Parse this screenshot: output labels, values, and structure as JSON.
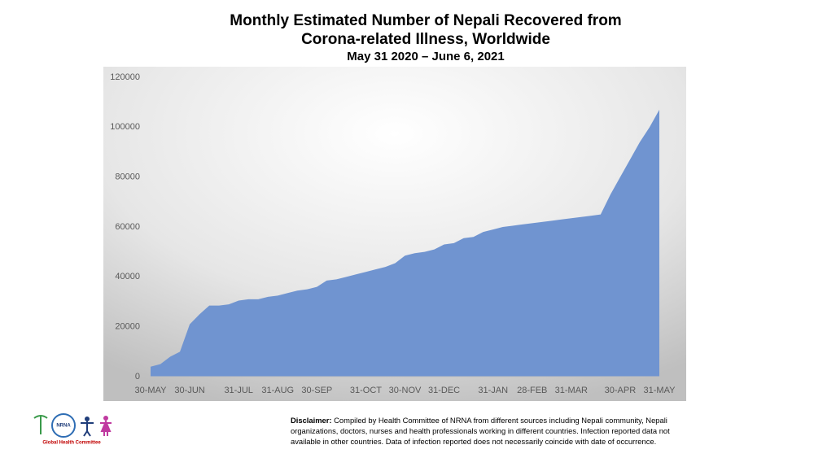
{
  "chart_data": {
    "type": "area",
    "title": "Monthly Estimated Number of Nepali Recovered from Corona-related Illness, Worldwide",
    "subtitle": "May 31 2020 – June 6, 2021",
    "categories": [
      "30-MAY",
      null,
      null,
      null,
      "30-JUN",
      null,
      null,
      null,
      null,
      "31-JUL",
      null,
      null,
      null,
      "31-AUG",
      null,
      null,
      null,
      "30-SEP",
      null,
      null,
      null,
      null,
      "31-OCT",
      null,
      null,
      null,
      "30-NOV",
      null,
      null,
      null,
      "31-DEC",
      null,
      null,
      null,
      null,
      "31-JAN",
      null,
      null,
      null,
      "28-FEB",
      null,
      null,
      null,
      "31-MAR",
      null,
      null,
      null,
      null,
      "30-APR",
      null,
      null,
      null,
      "31-MAY"
    ],
    "values": [
      4000,
      5000,
      8000,
      10000,
      21000,
      25000,
      28500,
      28500,
      29000,
      30500,
      31000,
      31000,
      32000,
      32500,
      33500,
      34500,
      35000,
      36000,
      38500,
      39000,
      40000,
      41000,
      42000,
      43000,
      44000,
      45500,
      48500,
      49500,
      50000,
      51000,
      53000,
      53500,
      55500,
      56000,
      58000,
      59000,
      60000,
      60500,
      61000,
      61500,
      62000,
      62500,
      63000,
      63500,
      64000,
      64500,
      65000,
      73000,
      80000,
      87000,
      94000,
      100000,
      107000
    ],
    "color": "#7094d0",
    "ylim": [
      0,
      120000
    ],
    "yticks": [
      0,
      20000,
      40000,
      60000,
      80000,
      100000,
      120000
    ],
    "grid": false
  },
  "logo": {
    "text": "NRNA",
    "caption": "Global Health Committee"
  },
  "disclaimer": {
    "label": "Disclaimer:",
    "text": "Compiled by Health Committee of NRNA from different sources including Nepali community, Nepali organizations, doctors, nurses and health professionals working in different countries. Infection reported data not available in other countries. Data of infection reported does not necessarily coincide with date of occurrence."
  }
}
